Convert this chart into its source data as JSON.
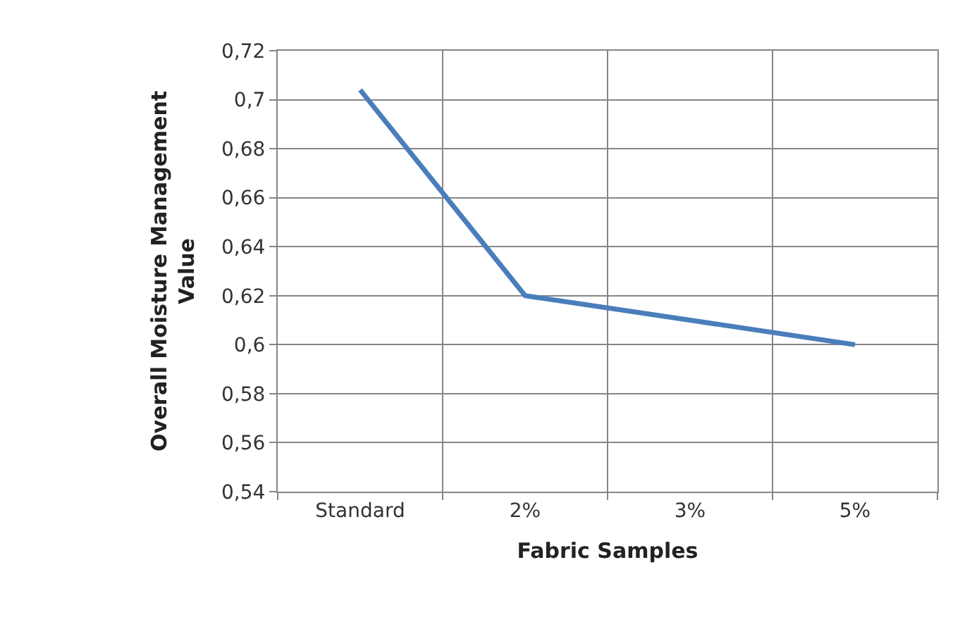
{
  "chart_data": {
    "type": "line",
    "categories": [
      "Standard",
      "2%",
      "3%",
      "5%"
    ],
    "series": [
      {
        "color": "#4a7ebb",
        "values": [
          0.704,
          0.62,
          0.61,
          0.6
        ]
      }
    ],
    "xlabel": "Fabric Samples",
    "ylabel": "Overall Moisture Management Value",
    "ylim": [
      0.54,
      0.72
    ],
    "yticks": [
      {
        "value": 0.54,
        "label": "0,54"
      },
      {
        "value": 0.56,
        "label": "0,56"
      },
      {
        "value": 0.58,
        "label": "0,58"
      },
      {
        "value": 0.6,
        "label": "0,6"
      },
      {
        "value": 0.62,
        "label": "0,62"
      },
      {
        "value": 0.64,
        "label": "0,64"
      },
      {
        "value": 0.66,
        "label": "0,66"
      },
      {
        "value": 0.68,
        "label": "0,68"
      },
      {
        "value": 0.7,
        "label": "0,7"
      },
      {
        "value": 0.72,
        "label": "0,72"
      }
    ],
    "grid": true,
    "marker": "none",
    "line_style": "solid"
  }
}
